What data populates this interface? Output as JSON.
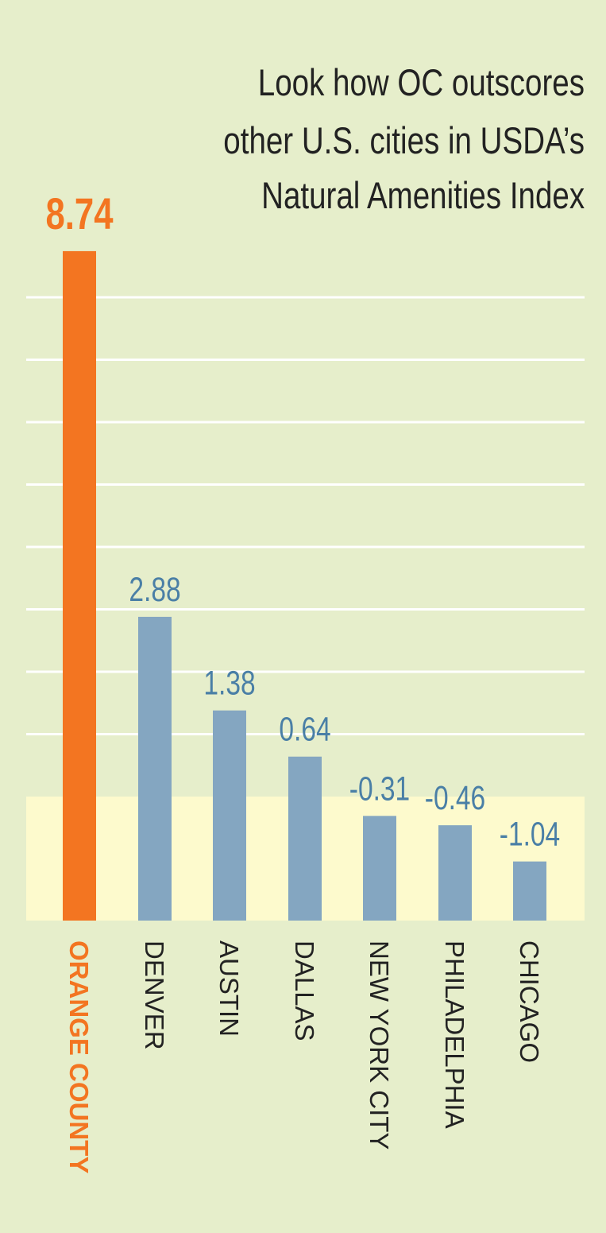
{
  "chart_data": {
    "type": "bar",
    "title": [
      "Look how OC outscores",
      "other U.S. cities in USDA’s",
      "Natural Amenities Index"
    ],
    "categories": [
      "ORANGE COUNTY",
      "DENVER",
      "AUSTIN",
      "DALLAS",
      "NEW YORK CITY",
      "PHILADELPHIA",
      "CHICAGO"
    ],
    "values": [
      8.74,
      2.88,
      1.38,
      0.64,
      -0.31,
      -0.46,
      -1.04
    ],
    "value_labels": [
      "8.74",
      "2.88",
      "1.38",
      "0.64",
      "-0.31",
      "-0.46",
      "-1.04"
    ],
    "highlight_index": 0,
    "grid": true,
    "colors": {
      "background": "#e6eecb",
      "below_zero_band": "#fdfacd",
      "highlight_bar": "#f37521",
      "bar": "#84a6c1",
      "value_label": "#4a7fa6",
      "category_label": "#222222",
      "gridline": "#ffffff",
      "title": "#222222"
    }
  }
}
